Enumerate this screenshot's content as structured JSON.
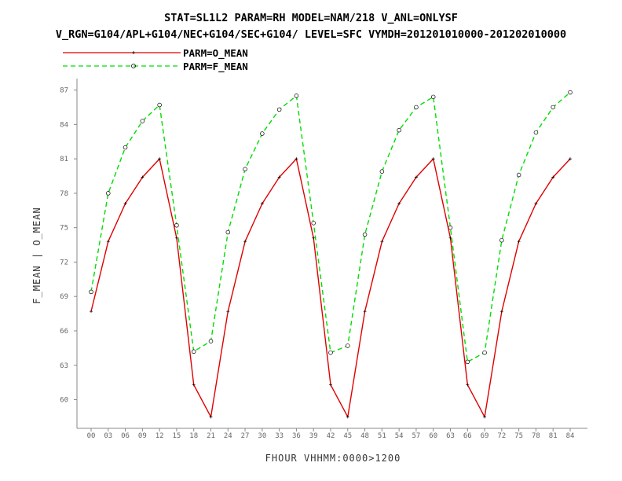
{
  "chart_data": {
    "type": "line",
    "title": "STAT=SL1L2 PARAM=RH MODEL=NAM/218 V_ANL=ONLYSF",
    "subtitle": "V_RGN=G104/APL+G104/NEC+G104/SEC+G104/ LEVEL=SFC VYMDH=201201010000-201202010000",
    "xlabel": "FHOUR VHHMM:0000>1200",
    "ylabel": "F_MEAN | O_MEAN",
    "x": [
      "00",
      "03",
      "06",
      "09",
      "12",
      "15",
      "18",
      "21",
      "24",
      "27",
      "30",
      "33",
      "36",
      "39",
      "42",
      "45",
      "48",
      "51",
      "54",
      "57",
      "60",
      "63",
      "66",
      "69",
      "72",
      "75",
      "78",
      "81",
      "84"
    ],
    "ylim": [
      57.5,
      88
    ],
    "yticks": [
      60,
      63,
      66,
      69,
      72,
      75,
      78,
      81,
      84,
      87
    ],
    "grid": false,
    "legend_position": "top-left",
    "series": [
      {
        "name": "PARM=O_MEAN",
        "color": "#e00000",
        "dash": "solid",
        "marker": "plus",
        "values": [
          67.7,
          73.8,
          77.1,
          79.4,
          81.0,
          74.1,
          61.3,
          58.5,
          67.7,
          73.8,
          77.1,
          79.4,
          81.0,
          74.1,
          61.3,
          58.5,
          67.7,
          73.8,
          77.1,
          79.4,
          81.0,
          74.1,
          61.3,
          58.5,
          67.7,
          73.8,
          77.1,
          79.4,
          81.0
        ]
      },
      {
        "name": "PARM=F_MEAN",
        "color": "#00dd00",
        "dash": "dashed",
        "marker": "circle",
        "values": [
          69.4,
          78.0,
          82.0,
          84.3,
          85.7,
          75.2,
          64.2,
          65.1,
          74.6,
          80.1,
          83.2,
          85.3,
          86.5,
          75.4,
          64.1,
          64.7,
          74.4,
          79.9,
          83.5,
          85.5,
          86.4,
          75.0,
          63.3,
          64.1,
          73.9,
          79.6,
          83.3,
          85.5,
          86.8
        ]
      }
    ]
  }
}
